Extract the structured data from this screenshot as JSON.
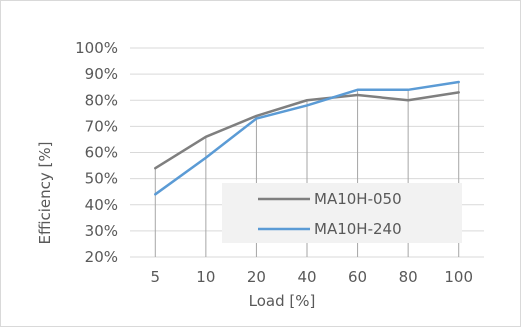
{
  "chart_data": {
    "type": "line",
    "title": "",
    "xlabel": "Load [%]",
    "ylabel": "Efficiency [%]",
    "categories": [
      "5",
      "10",
      "20",
      "40",
      "60",
      "80",
      "100"
    ],
    "yticks": [
      "20%",
      "30%",
      "40%",
      "50%",
      "60%",
      "70%",
      "80%",
      "90%",
      "100%"
    ],
    "ylim": [
      20,
      100
    ],
    "grid": true,
    "legend_position": "inside-lower-right",
    "series": [
      {
        "name": "MA10H-050",
        "values": [
          54,
          66,
          74,
          80,
          82,
          80,
          83
        ],
        "color": "#7f7f7f"
      },
      {
        "name": "MA10H-240",
        "values": [
          44,
          58,
          73,
          78,
          84,
          84,
          87
        ],
        "color": "#5b9bd5"
      }
    ]
  }
}
